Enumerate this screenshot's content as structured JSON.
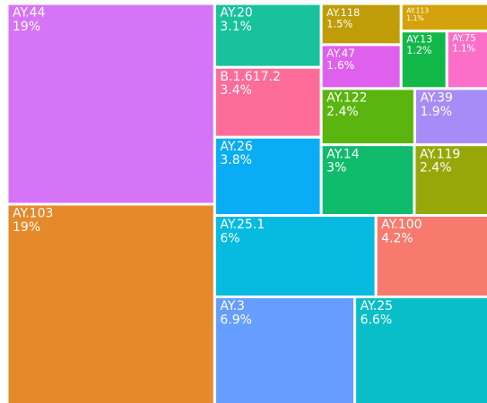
{
  "chart_data": {
    "type": "treemap",
    "categories": [
      "AY.44",
      "AY.103",
      "AY.20",
      "B.1.617.2",
      "AY.26",
      "AY.118",
      "AY.113",
      "AY.13",
      "AY.75",
      "AY.47",
      "AY.122",
      "AY.39",
      "AY.14",
      "AY.119",
      "AY.25.1",
      "AY.100",
      "AY.3",
      "AY.25"
    ],
    "values": [
      19,
      19,
      3.1,
      3.4,
      3.8,
      1.5,
      1.1,
      1.2,
      1.1,
      1.6,
      2.4,
      1.9,
      3,
      2.4,
      6,
      4.2,
      6.9,
      6.6
    ],
    "value_labels": [
      "19%",
      "19%",
      "3.1%",
      "3.4%",
      "3.8%",
      "1.5%",
      "1.1%",
      "1.2%",
      "1.1%",
      "1.6%",
      "2.4%",
      "1.9%",
      "3%",
      "2.4%",
      "6%",
      "4.2%",
      "6.9%",
      "6.6%"
    ],
    "colors": [
      "#d674f7",
      "#e6892b",
      "#17c29c",
      "#fe6c9a",
      "#09adf5",
      "#c09d08",
      "#d4a20a",
      "#12b84a",
      "#fc6fc8",
      "#e060ee",
      "#5ab50e",
      "#a78cf8",
      "#11bb6c",
      "#97a709",
      "#07bbe0",
      "#f87a6e",
      "#659efe",
      "#0abec7"
    ]
  }
}
